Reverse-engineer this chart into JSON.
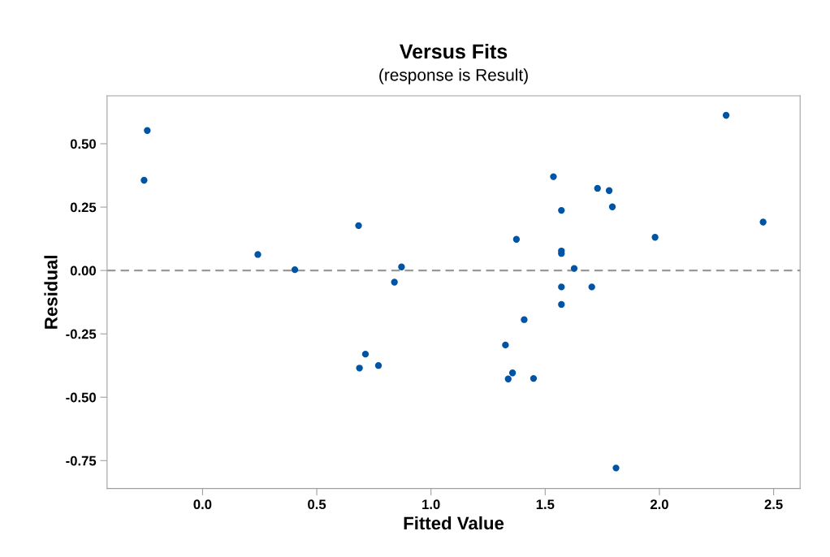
{
  "chart_data": {
    "type": "scatter",
    "title": "Versus Fits",
    "subtitle": "(response is Result)",
    "xlabel": "Fitted Value",
    "ylabel": "Residual",
    "x": [
      -0.242,
      -0.256,
      0.242,
      0.404,
      0.683,
      0.713,
      0.687,
      0.77,
      0.84,
      0.871,
      2.292,
      1.536,
      1.729,
      1.78,
      1.794,
      1.571,
      2.454,
      1.374,
      1.981,
      1.571,
      1.571,
      1.627,
      1.571,
      1.704,
      1.571,
      1.408,
      1.326,
      1.357,
      1.338,
      1.449,
      1.81
    ],
    "series": [
      {
        "color": "#0054a6",
        "values": [
          0.552,
          0.356,
          0.063,
          0.003,
          0.177,
          -0.33,
          -0.385,
          -0.375,
          -0.046,
          0.014,
          0.612,
          0.37,
          0.324,
          0.315,
          0.251,
          0.237,
          0.191,
          0.123,
          0.131,
          0.077,
          0.067,
          0.008,
          -0.065,
          -0.065,
          -0.134,
          -0.194,
          -0.294,
          -0.404,
          -0.428,
          -0.426,
          -0.779
        ]
      }
    ],
    "marker": "circle",
    "xlim": [
      -0.418,
      2.616
    ],
    "ylim": [
      -0.86,
      0.689
    ],
    "xticks": [
      {
        "value": 0,
        "label": "0.0"
      },
      {
        "value": 0.5,
        "label": "0.5"
      },
      {
        "value": 1,
        "label": "1.0"
      },
      {
        "value": 1.5,
        "label": "1.5"
      },
      {
        "value": 2,
        "label": "2.0"
      },
      {
        "value": 2.5,
        "label": "2.5"
      }
    ],
    "yticks": [
      {
        "value": -0.75,
        "label": "-0.75"
      },
      {
        "value": -0.5,
        "label": "-0.50"
      },
      {
        "value": -0.25,
        "label": "-0.25"
      },
      {
        "value": 0,
        "label": "0.00"
      },
      {
        "value": 0.25,
        "label": "0.25"
      },
      {
        "value": 0.5,
        "label": "0.50"
      }
    ],
    "ref_lines": [
      {
        "axis": "y",
        "value": 0,
        "color": "#999999",
        "line_style": "dashed"
      }
    ],
    "grid": false,
    "legend": false
  }
}
